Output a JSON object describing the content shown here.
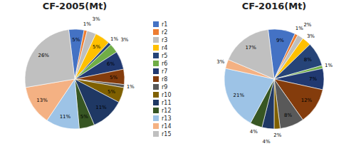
{
  "chart_data": [
    {
      "type": "pie",
      "title": "CF-2005(Mt)",
      "categories": [
        "r1",
        "r2",
        "r3",
        "r4",
        "r5",
        "r6",
        "r7",
        "r8",
        "r9",
        "r10",
        "r11",
        "r12",
        "r13",
        "r14",
        "r15"
      ],
      "values": [
        5,
        1,
        3,
        5,
        1,
        3,
        6,
        5,
        1,
        5,
        11,
        5,
        11,
        13,
        26
      ],
      "value_labels": [
        "5%",
        "1%",
        "3%",
        "5%",
        "1%",
        "3%",
        "6%",
        "5%",
        "1%",
        "5%",
        "11%",
        "5%",
        "11%",
        "13%",
        "26%"
      ],
      "colors": [
        "#4472C4",
        "#ED7D31",
        "#BFBFBF",
        "#FFC000",
        "#264478",
        "#70AD47",
        "#213971",
        "#843C0C",
        "#595959",
        "#7F6000",
        "#1F3864",
        "#375623",
        "#9DC3E6",
        "#F4B183",
        "#C0C0C0"
      ],
      "data_labels": true,
      "legend": "center"
    },
    {
      "type": "pie",
      "title": "CF-2016(Mt)",
      "categories": [
        "r1",
        "r2",
        "r3",
        "r4",
        "r5",
        "r6",
        "r7",
        "r8",
        "r9",
        "r10",
        "r11",
        "r12",
        "r13",
        "r14",
        "r15"
      ],
      "values": [
        9,
        1,
        2,
        3,
        8,
        1,
        7,
        12,
        8,
        2,
        4,
        4,
        21,
        3,
        17
      ],
      "value_labels": [
        "9%",
        "1%",
        "2%",
        "3%",
        "8%",
        "1%",
        "7%",
        "12%",
        "8%",
        "2%",
        "4%",
        "4%",
        "21%",
        "3%",
        "17%"
      ],
      "colors": [
        "#4472C4",
        "#ED7D31",
        "#BFBFBF",
        "#FFC000",
        "#264478",
        "#70AD47",
        "#213971",
        "#843C0C",
        "#595959",
        "#7F6000",
        "#1F3864",
        "#375623",
        "#9DC3E6",
        "#F4B183",
        "#C0C0C0"
      ],
      "data_labels": true
    }
  ]
}
